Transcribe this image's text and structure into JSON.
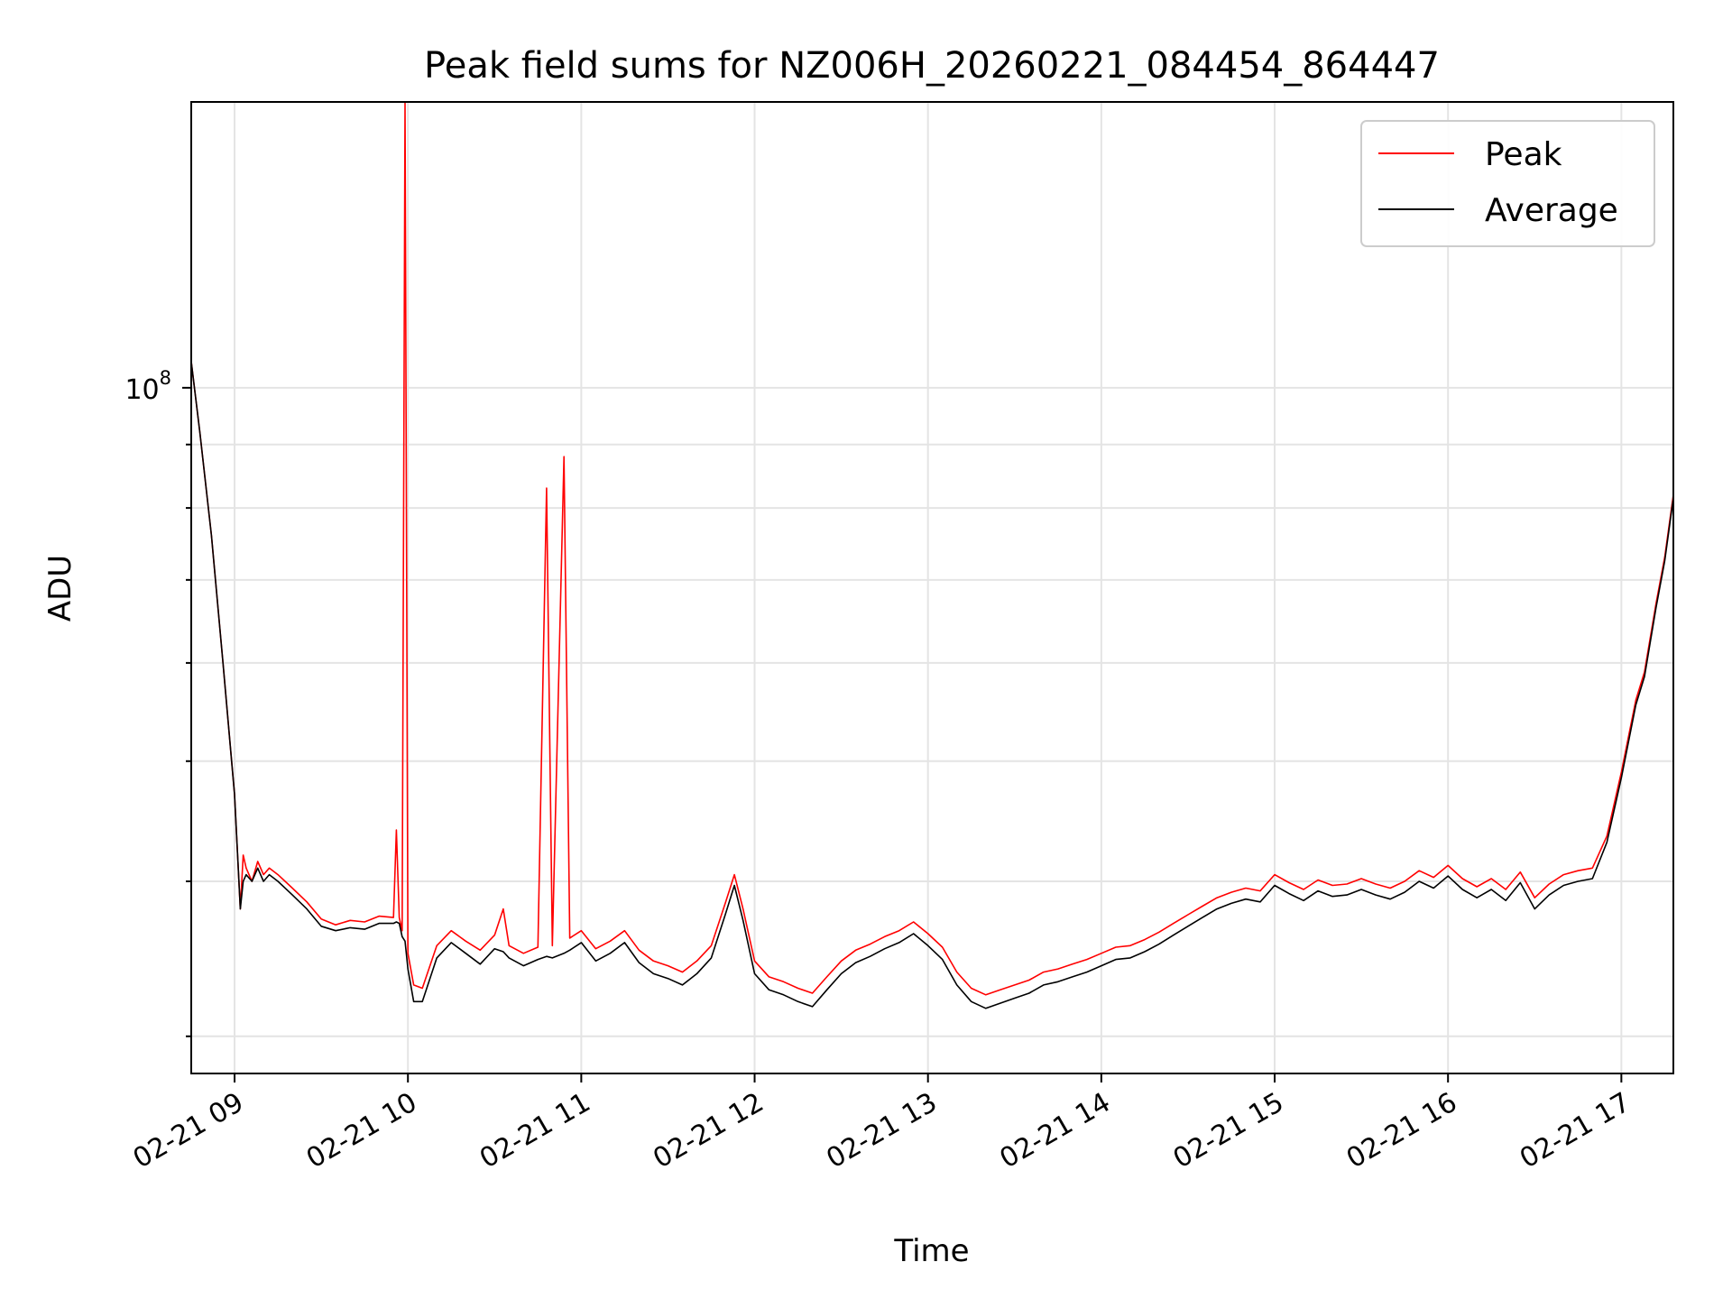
{
  "chart_data": {
    "type": "line",
    "title": "Peak field sums for NZ006H_20260221_084454_864447",
    "xlabel": "Time",
    "ylabel": "ADU",
    "yscale": "log",
    "x_range": [
      "02-21 08:45",
      "02-21 17:18"
    ],
    "ylim": [
      28000000,
      170000000
    ],
    "grid": true,
    "legend_position": "top-right",
    "x_ticks": [
      "02-21 09",
      "02-21 10",
      "02-21 11",
      "02-21 12",
      "02-21 13",
      "02-21 14",
      "02-21 15",
      "02-21 16",
      "02-21 17"
    ],
    "y_ticks": [
      {
        "value": 100000000,
        "base": "10",
        "exp": "8"
      }
    ],
    "colors": {
      "peak": "#ff0000",
      "average": "#000000",
      "grid": "#e4e4e4"
    },
    "series": [
      {
        "name": "Peak",
        "color": "#ff0000",
        "points": [
          [
            "02-21 08:45",
            105000000
          ],
          [
            "02-21 08:48",
            92000000
          ],
          [
            "02-21 08:52",
            76000000
          ],
          [
            "02-21 08:56",
            60000000
          ],
          [
            "02-21 09:00",
            47000000
          ],
          [
            "02-21 09:02",
            38000000
          ],
          [
            "02-21 09:03",
            42000000
          ],
          [
            "02-21 09:04",
            41000000
          ],
          [
            "02-21 09:06",
            40000000
          ],
          [
            "02-21 09:08",
            41500000
          ],
          [
            "02-21 09:10",
            40500000
          ],
          [
            "02-21 09:12",
            41000000
          ],
          [
            "02-21 09:15",
            40500000
          ],
          [
            "02-21 09:20",
            39500000
          ],
          [
            "02-21 09:25",
            38500000
          ],
          [
            "02-21 09:30",
            37300000
          ],
          [
            "02-21 09:35",
            36900000
          ],
          [
            "02-21 09:40",
            37200000
          ],
          [
            "02-21 09:45",
            37100000
          ],
          [
            "02-21 09:50",
            37500000
          ],
          [
            "02-21 09:55",
            37400000
          ],
          [
            "02-21 09:56",
            44000000
          ],
          [
            "02-21 09:57",
            37400000
          ],
          [
            "02-21 09:58",
            36500000
          ],
          [
            "02-21 09:59",
            170000000
          ],
          [
            "02-21 10:00",
            35000000
          ],
          [
            "02-21 10:02",
            33000000
          ],
          [
            "02-21 10:05",
            32800000
          ],
          [
            "02-21 10:10",
            35500000
          ],
          [
            "02-21 10:15",
            36500000
          ],
          [
            "02-21 10:20",
            35800000
          ],
          [
            "02-21 10:25",
            35200000
          ],
          [
            "02-21 10:30",
            36200000
          ],
          [
            "02-21 10:33",
            38000000
          ],
          [
            "02-21 10:35",
            35500000
          ],
          [
            "02-21 10:40",
            35000000
          ],
          [
            "02-21 10:45",
            35400000
          ],
          [
            "02-21 10:48",
            83000000
          ],
          [
            "02-21 10:50",
            35500000
          ],
          [
            "02-21 10:54",
            88000000
          ],
          [
            "02-21 10:56",
            36000000
          ],
          [
            "02-21 11:00",
            36500000
          ],
          [
            "02-21 11:05",
            35300000
          ],
          [
            "02-21 11:10",
            35800000
          ],
          [
            "02-21 11:15",
            36500000
          ],
          [
            "02-21 11:20",
            35200000
          ],
          [
            "02-21 11:25",
            34500000
          ],
          [
            "02-21 11:30",
            34200000
          ],
          [
            "02-21 11:35",
            33800000
          ],
          [
            "02-21 11:40",
            34500000
          ],
          [
            "02-21 11:45",
            35500000
          ],
          [
            "02-21 11:50",
            38500000
          ],
          [
            "02-21 11:53",
            40500000
          ],
          [
            "02-21 11:56",
            38000000
          ],
          [
            "02-21 12:00",
            34500000
          ],
          [
            "02-21 12:05",
            33500000
          ],
          [
            "02-21 12:10",
            33200000
          ],
          [
            "02-21 12:15",
            32800000
          ],
          [
            "02-21 12:20",
            32500000
          ],
          [
            "02-21 12:25",
            33500000
          ],
          [
            "02-21 12:30",
            34500000
          ],
          [
            "02-21 12:35",
            35200000
          ],
          [
            "02-21 12:40",
            35600000
          ],
          [
            "02-21 12:45",
            36100000
          ],
          [
            "02-21 12:50",
            36500000
          ],
          [
            "02-21 12:55",
            37100000
          ],
          [
            "02-21 13:00",
            36300000
          ],
          [
            "02-21 13:05",
            35400000
          ],
          [
            "02-21 13:10",
            33800000
          ],
          [
            "02-21 13:15",
            32800000
          ],
          [
            "02-21 13:20",
            32400000
          ],
          [
            "02-21 13:25",
            32700000
          ],
          [
            "02-21 13:30",
            33000000
          ],
          [
            "02-21 13:35",
            33300000
          ],
          [
            "02-21 13:40",
            33800000
          ],
          [
            "02-21 13:45",
            34000000
          ],
          [
            "02-21 13:50",
            34300000
          ],
          [
            "02-21 13:55",
            34600000
          ],
          [
            "02-21 14:00",
            35000000
          ],
          [
            "02-21 14:05",
            35400000
          ],
          [
            "02-21 14:10",
            35500000
          ],
          [
            "02-21 14:15",
            35900000
          ],
          [
            "02-21 14:20",
            36400000
          ],
          [
            "02-21 14:25",
            37000000
          ],
          [
            "02-21 14:30",
            37600000
          ],
          [
            "02-21 14:35",
            38200000
          ],
          [
            "02-21 14:40",
            38800000
          ],
          [
            "02-21 14:45",
            39200000
          ],
          [
            "02-21 14:50",
            39500000
          ],
          [
            "02-21 14:55",
            39300000
          ],
          [
            "02-21 15:00",
            40500000
          ],
          [
            "02-21 15:05",
            39900000
          ],
          [
            "02-21 15:10",
            39400000
          ],
          [
            "02-21 15:15",
            40100000
          ],
          [
            "02-21 15:20",
            39700000
          ],
          [
            "02-21 15:25",
            39800000
          ],
          [
            "02-21 15:30",
            40200000
          ],
          [
            "02-21 15:35",
            39800000
          ],
          [
            "02-21 15:40",
            39500000
          ],
          [
            "02-21 15:45",
            40000000
          ],
          [
            "02-21 15:50",
            40800000
          ],
          [
            "02-21 15:55",
            40300000
          ],
          [
            "02-21 16:00",
            41200000
          ],
          [
            "02-21 16:05",
            40200000
          ],
          [
            "02-21 16:10",
            39600000
          ],
          [
            "02-21 16:15",
            40200000
          ],
          [
            "02-21 16:20",
            39400000
          ],
          [
            "02-21 16:25",
            40700000
          ],
          [
            "02-21 16:30",
            38800000
          ],
          [
            "02-21 16:35",
            39800000
          ],
          [
            "02-21 16:40",
            40500000
          ],
          [
            "02-21 16:45",
            40800000
          ],
          [
            "02-21 16:50",
            41000000
          ],
          [
            "02-21 16:55",
            43500000
          ],
          [
            "02-21 17:00",
            49000000
          ],
          [
            "02-21 17:05",
            56000000
          ],
          [
            "02-21 17:08",
            59000000
          ],
          [
            "02-21 17:12",
            67000000
          ],
          [
            "02-21 17:15",
            73000000
          ],
          [
            "02-21 17:18",
            82000000
          ]
        ]
      },
      {
        "name": "Average",
        "color": "#000000",
        "points": [
          [
            "02-21 08:45",
            105000000
          ],
          [
            "02-21 08:48",
            92000000
          ],
          [
            "02-21 08:52",
            76000000
          ],
          [
            "02-21 08:56",
            60000000
          ],
          [
            "02-21 09:00",
            47000000
          ],
          [
            "02-21 09:02",
            38000000
          ],
          [
            "02-21 09:03",
            40000000
          ],
          [
            "02-21 09:04",
            40500000
          ],
          [
            "02-21 09:06",
            40000000
          ],
          [
            "02-21 09:08",
            41000000
          ],
          [
            "02-21 09:10",
            40000000
          ],
          [
            "02-21 09:12",
            40500000
          ],
          [
            "02-21 09:15",
            40000000
          ],
          [
            "02-21 09:20",
            39000000
          ],
          [
            "02-21 09:25",
            38000000
          ],
          [
            "02-21 09:30",
            36800000
          ],
          [
            "02-21 09:35",
            36500000
          ],
          [
            "02-21 09:40",
            36700000
          ],
          [
            "02-21 09:45",
            36600000
          ],
          [
            "02-21 09:50",
            37000000
          ],
          [
            "02-21 09:55",
            37000000
          ],
          [
            "02-21 09:56",
            37100000
          ],
          [
            "02-21 09:57",
            37000000
          ],
          [
            "02-21 09:58",
            36100000
          ],
          [
            "02-21 09:59",
            35800000
          ],
          [
            "02-21 10:00",
            34000000
          ],
          [
            "02-21 10:02",
            32000000
          ],
          [
            "02-21 10:05",
            32000000
          ],
          [
            "02-21 10:10",
            34700000
          ],
          [
            "02-21 10:15",
            35700000
          ],
          [
            "02-21 10:20",
            35000000
          ],
          [
            "02-21 10:25",
            34300000
          ],
          [
            "02-21 10:30",
            35300000
          ],
          [
            "02-21 10:33",
            35100000
          ],
          [
            "02-21 10:35",
            34700000
          ],
          [
            "02-21 10:40",
            34200000
          ],
          [
            "02-21 10:45",
            34600000
          ],
          [
            "02-21 10:48",
            34800000
          ],
          [
            "02-21 10:50",
            34700000
          ],
          [
            "02-21 10:54",
            35000000
          ],
          [
            "02-21 10:56",
            35200000
          ],
          [
            "02-21 11:00",
            35700000
          ],
          [
            "02-21 11:05",
            34500000
          ],
          [
            "02-21 11:10",
            35000000
          ],
          [
            "02-21 11:15",
            35700000
          ],
          [
            "02-21 11:20",
            34400000
          ],
          [
            "02-21 11:25",
            33700000
          ],
          [
            "02-21 11:30",
            33400000
          ],
          [
            "02-21 11:35",
            33000000
          ],
          [
            "02-21 11:40",
            33700000
          ],
          [
            "02-21 11:45",
            34700000
          ],
          [
            "02-21 11:50",
            37700000
          ],
          [
            "02-21 11:53",
            39700000
          ],
          [
            "02-21 11:56",
            37200000
          ],
          [
            "02-21 12:00",
            33700000
          ],
          [
            "02-21 12:05",
            32700000
          ],
          [
            "02-21 12:10",
            32400000
          ],
          [
            "02-21 12:15",
            32000000
          ],
          [
            "02-21 12:20",
            31700000
          ],
          [
            "02-21 12:25",
            32700000
          ],
          [
            "02-21 12:30",
            33700000
          ],
          [
            "02-21 12:35",
            34400000
          ],
          [
            "02-21 12:40",
            34800000
          ],
          [
            "02-21 12:45",
            35300000
          ],
          [
            "02-21 12:50",
            35700000
          ],
          [
            "02-21 12:55",
            36300000
          ],
          [
            "02-21 13:00",
            35500000
          ],
          [
            "02-21 13:05",
            34600000
          ],
          [
            "02-21 13:10",
            33000000
          ],
          [
            "02-21 13:15",
            32000000
          ],
          [
            "02-21 13:20",
            31600000
          ],
          [
            "02-21 13:25",
            31900000
          ],
          [
            "02-21 13:30",
            32200000
          ],
          [
            "02-21 13:35",
            32500000
          ],
          [
            "02-21 13:40",
            33000000
          ],
          [
            "02-21 13:45",
            33200000
          ],
          [
            "02-21 13:50",
            33500000
          ],
          [
            "02-21 13:55",
            33800000
          ],
          [
            "02-21 14:00",
            34200000
          ],
          [
            "02-21 14:05",
            34600000
          ],
          [
            "02-21 14:10",
            34700000
          ],
          [
            "02-21 14:15",
            35100000
          ],
          [
            "02-21 14:20",
            35600000
          ],
          [
            "02-21 14:25",
            36200000
          ],
          [
            "02-21 14:30",
            36800000
          ],
          [
            "02-21 14:35",
            37400000
          ],
          [
            "02-21 14:40",
            38000000
          ],
          [
            "02-21 14:45",
            38400000
          ],
          [
            "02-21 14:50",
            38700000
          ],
          [
            "02-21 14:55",
            38500000
          ],
          [
            "02-21 15:00",
            39700000
          ],
          [
            "02-21 15:05",
            39100000
          ],
          [
            "02-21 15:10",
            38600000
          ],
          [
            "02-21 15:15",
            39300000
          ],
          [
            "02-21 15:20",
            38900000
          ],
          [
            "02-21 15:25",
            39000000
          ],
          [
            "02-21 15:30",
            39400000
          ],
          [
            "02-21 15:35",
            39000000
          ],
          [
            "02-21 15:40",
            38700000
          ],
          [
            "02-21 15:45",
            39200000
          ],
          [
            "02-21 15:50",
            40000000
          ],
          [
            "02-21 15:55",
            39500000
          ],
          [
            "02-21 16:00",
            40400000
          ],
          [
            "02-21 16:05",
            39400000
          ],
          [
            "02-21 16:10",
            38800000
          ],
          [
            "02-21 16:15",
            39400000
          ],
          [
            "02-21 16:20",
            38600000
          ],
          [
            "02-21 16:25",
            39900000
          ],
          [
            "02-21 16:30",
            38000000
          ],
          [
            "02-21 16:35",
            39000000
          ],
          [
            "02-21 16:40",
            39700000
          ],
          [
            "02-21 16:45",
            40000000
          ],
          [
            "02-21 16:50",
            40200000
          ],
          [
            "02-21 16:55",
            43000000
          ],
          [
            "02-21 17:00",
            48500000
          ],
          [
            "02-21 17:05",
            55500000
          ],
          [
            "02-21 17:08",
            58500000
          ],
          [
            "02-21 17:12",
            66500000
          ],
          [
            "02-21 17:15",
            72500000
          ],
          [
            "02-21 17:18",
            81500000
          ]
        ]
      }
    ]
  }
}
